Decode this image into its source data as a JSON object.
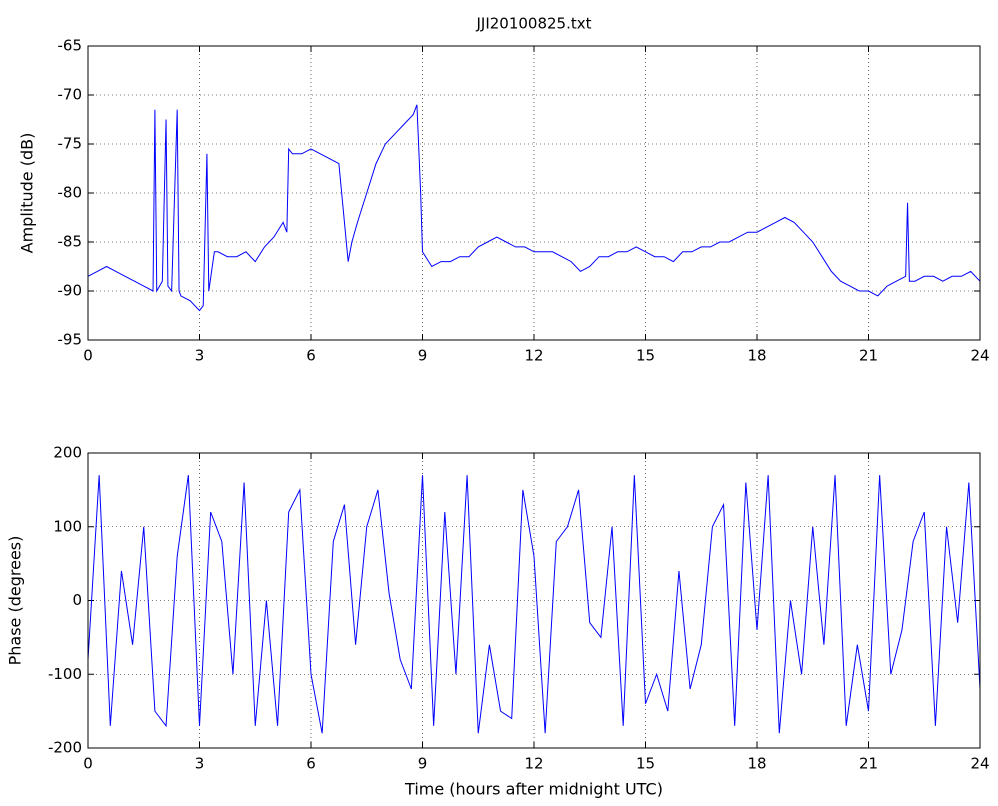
{
  "chart_data": [
    {
      "type": "line",
      "title": "JJI20100825.txt",
      "y_label": "Amplitude (dB)",
      "x": [
        0,
        0.25,
        0.5,
        0.75,
        1,
        1.25,
        1.5,
        1.75,
        1.8,
        1.85,
        2,
        2.1,
        2.15,
        2.25,
        2.4,
        2.45,
        2.5,
        2.75,
        3,
        3.1,
        3.2,
        3.25,
        3.4,
        3.5,
        3.75,
        4,
        4.25,
        4.5,
        4.75,
        5,
        5.25,
        5.35,
        5.4,
        5.5,
        5.75,
        6,
        6.25,
        6.5,
        6.75,
        6.9,
        7,
        7.1,
        7.25,
        7.5,
        7.75,
        8,
        8.25,
        8.5,
        8.75,
        8.85,
        8.95,
        9,
        9.25,
        9.5,
        9.75,
        10,
        10.25,
        10.5,
        10.75,
        11,
        11.25,
        11.5,
        11.75,
        12,
        12.25,
        12.5,
        12.75,
        13,
        13.25,
        13.5,
        13.75,
        14,
        14.25,
        14.5,
        14.75,
        15,
        15.25,
        15.5,
        15.75,
        16,
        16.25,
        16.5,
        16.75,
        17,
        17.25,
        17.5,
        17.75,
        18,
        18.25,
        18.5,
        18.75,
        19,
        19.25,
        19.5,
        19.75,
        20,
        20.25,
        20.5,
        20.75,
        21,
        21.25,
        21.5,
        21.75,
        22,
        22.05,
        22.1,
        22.25,
        22.5,
        22.75,
        23,
        23.25,
        23.5,
        23.75,
        24
      ],
      "series": [
        {
          "color": "#0000ff",
          "values": [
            -88.5,
            -88,
            -87.5,
            -88,
            -88.5,
            -89,
            -89.5,
            -90,
            -71.5,
            -90,
            -89,
            -72.5,
            -89.5,
            -90,
            -71.5,
            -90,
            -90.5,
            -91,
            -92,
            -91.5,
            -76,
            -90,
            -86,
            -86,
            -86.5,
            -86.5,
            -86,
            -87,
            -85.5,
            -84.5,
            -83,
            -84,
            -75.5,
            -76,
            -76,
            -75.5,
            -76,
            -76.5,
            -77,
            -83,
            -87,
            -85,
            -83,
            -80,
            -77,
            -75,
            -74,
            -73,
            -72,
            -71,
            -80,
            -86,
            -87.5,
            -87,
            -87,
            -86.5,
            -86.5,
            -85.5,
            -85,
            -84.5,
            -85,
            -85.5,
            -85.5,
            -86,
            -86,
            -86,
            -86.5,
            -87,
            -88,
            -87.5,
            -86.5,
            -86.5,
            -86,
            -86,
            -85.5,
            -86,
            -86.5,
            -86.5,
            -87,
            -86,
            -86,
            -85.5,
            -85.5,
            -85,
            -85,
            -84.5,
            -84,
            -84,
            -83.5,
            -83,
            -82.5,
            -83,
            -84,
            -85,
            -86.5,
            -88,
            -89,
            -89.5,
            -90,
            -90,
            -90.5,
            -89.5,
            -89,
            -88.5,
            -81,
            -89,
            -89,
            -88.5,
            -88.5,
            -89,
            -88.5,
            -88.5,
            -88,
            -89
          ]
        }
      ],
      "xlim": [
        0,
        24
      ],
      "xticks": [
        0,
        3,
        6,
        9,
        12,
        15,
        18,
        21,
        24
      ],
      "ylim": [
        -95,
        -65
      ],
      "yticks": [
        -95,
        -90,
        -85,
        -80,
        -75,
        -70,
        -65
      ],
      "grid": true
    },
    {
      "type": "line",
      "y_label": "Phase (degrees)",
      "x_label": "Time (hours after midnight UTC)",
      "x": [
        0,
        0.3,
        0.6,
        0.9,
        1.2,
        1.5,
        1.8,
        2.1,
        2.4,
        2.7,
        3,
        3.3,
        3.6,
        3.9,
        4.2,
        4.5,
        4.8,
        5.1,
        5.4,
        5.7,
        6,
        6.3,
        6.6,
        6.9,
        7.2,
        7.5,
        7.8,
        8.1,
        8.4,
        8.7,
        9,
        9.3,
        9.6,
        9.9,
        10.2,
        10.5,
        10.8,
        11.1,
        11.4,
        11.7,
        12,
        12.3,
        12.6,
        12.9,
        13.2,
        13.5,
        13.8,
        14.1,
        14.4,
        14.7,
        15,
        15.3,
        15.6,
        15.9,
        16.2,
        16.5,
        16.8,
        17.1,
        17.4,
        17.7,
        18,
        18.3,
        18.6,
        18.9,
        19.2,
        19.5,
        19.8,
        20.1,
        20.4,
        20.7,
        21,
        21.3,
        21.6,
        21.9,
        22.2,
        22.5,
        22.8,
        23.1,
        23.4,
        23.7,
        24
      ],
      "series": [
        {
          "color": "#0000ff",
          "values": [
            -80,
            170,
            -170,
            40,
            -60,
            100,
            -150,
            -170,
            60,
            170,
            -170,
            120,
            80,
            -100,
            160,
            -170,
            0,
            -170,
            120,
            150,
            -100,
            -180,
            80,
            130,
            -60,
            100,
            150,
            10,
            -80,
            -120,
            170,
            -170,
            120,
            -100,
            170,
            -180,
            -60,
            -150,
            -160,
            150,
            60,
            -180,
            80,
            100,
            150,
            -30,
            -50,
            100,
            -170,
            170,
            -140,
            -100,
            -150,
            40,
            -120,
            -60,
            100,
            130,
            -170,
            160,
            -40,
            170,
            -180,
            0,
            -100,
            100,
            -60,
            170,
            -170,
            -60,
            -150,
            170,
            -100,
            -40,
            80,
            120,
            -170,
            100,
            -30,
            160,
            -120
          ]
        }
      ],
      "xlim": [
        0,
        24
      ],
      "xticks": [
        0,
        3,
        6,
        9,
        12,
        15,
        18,
        21,
        24
      ],
      "ylim": [
        -200,
        200
      ],
      "yticks": [
        -200,
        -100,
        0,
        100,
        200
      ],
      "grid": true
    }
  ]
}
